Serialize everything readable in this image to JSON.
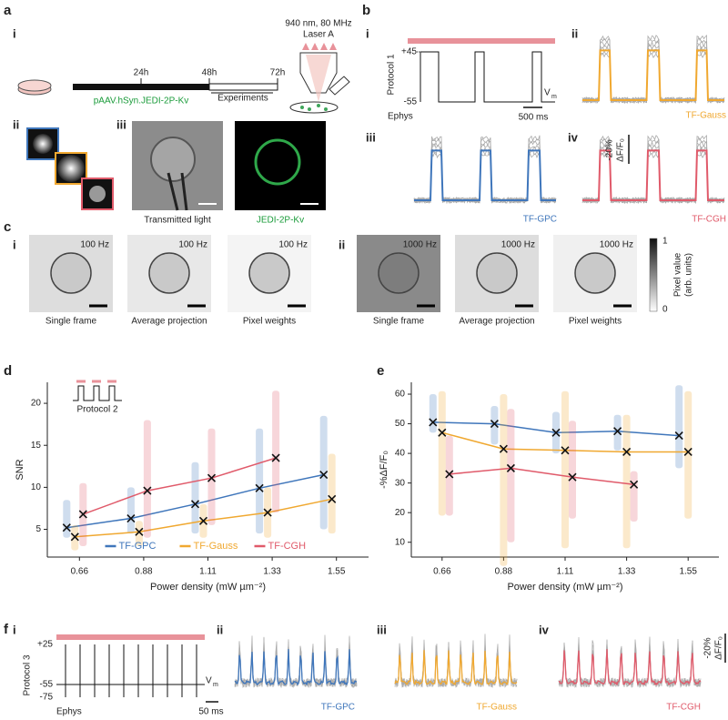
{
  "panel_labels": [
    "a",
    "b",
    "c",
    "d",
    "e",
    "f"
  ],
  "panel_a": {
    "sub_labels": [
      "i",
      "ii",
      "iii"
    ],
    "laser": [
      "940 nm, 80 MHz",
      "Laser A"
    ],
    "timeline": [
      "24h",
      "48h",
      "72h"
    ],
    "construct": "pAAV.hSyn.JEDI-2P-Kv",
    "experiments": "Experiments",
    "captions": [
      "Transmitted light",
      "JEDI-2P-Kv"
    ]
  },
  "panel_b": {
    "sub_labels": [
      "i",
      "ii",
      "iii",
      "iv"
    ],
    "protocol": "Protocol 1",
    "voltages": [
      "+45",
      "-55"
    ],
    "vm": {
      "symbol": "V",
      "subscript": "m"
    },
    "ephys": "Ephys",
    "time_scale": "500 ms",
    "traces": [
      "TF-Gauss",
      "TF-GPC",
      "TF-CGH"
    ],
    "scale": {
      "amplitude": "-20%",
      "unit": "ΔF/F₀"
    }
  },
  "panel_c": {
    "sub_labels": [
      "i",
      "ii"
    ],
    "i": {
      "rates": [
        "100 Hz",
        "100 Hz",
        "100 Hz"
      ],
      "captions": [
        "Single frame",
        "Average projection",
        "Pixel weights"
      ]
    },
    "ii": {
      "rates": [
        "1000 Hz",
        "1000 Hz",
        "1000 Hz"
      ],
      "captions": [
        "Single frame",
        "Average projection",
        "Pixel weights"
      ]
    },
    "colorbar": {
      "max": "1",
      "min": "0",
      "label": [
        "Pixel value",
        "(arb. units)"
      ]
    }
  },
  "panel_d_inset": "Protocol 2",
  "panel_f": {
    "sub_labels": [
      "i",
      "ii",
      "iii",
      "iv"
    ],
    "protocol": "Protocol 3",
    "voltages": [
      "+25",
      "-55",
      "-75"
    ],
    "vm": {
      "symbol": "V",
      "subscript": "m"
    },
    "ephys": "Ephys",
    "time_scale": "50 ms",
    "traces": [
      "TF-GPC",
      "TF-Gauss",
      "TF-CGH"
    ],
    "scale": {
      "amplitude": "-20%",
      "unit": "ΔF/F₀"
    }
  },
  "chart_data": [
    {
      "type": "line",
      "y_label": "SNR",
      "x_label": "Power density (mW µm⁻²)",
      "categories": [
        "0.66",
        "0.88",
        "1.11",
        "1.33",
        "1.55"
      ],
      "ylim": [
        1.7,
        22.5
      ],
      "yticks": [
        5,
        10,
        15,
        20
      ],
      "legend": "lower center",
      "series": [
        {
          "name": "TF-GPC",
          "color": "#3f76bb",
          "values": [
            5.2,
            6.3,
            8.0,
            9.9,
            11.5
          ],
          "ranges": [
            [
              4,
              8.5
            ],
            [
              4.5,
              10
            ],
            [
              4.5,
              13
            ],
            [
              4.5,
              17
            ],
            [
              5,
              18.5
            ]
          ]
        },
        {
          "name": "TF-Gauss",
          "color": "#f0a830",
          "values": [
            4.1,
            4.7,
            6.0,
            7.0,
            8.6
          ],
          "ranges": [
            [
              2.5,
              5.5
            ],
            [
              3,
              6
            ],
            [
              4,
              8
            ],
            [
              4,
              10
            ],
            [
              4.5,
              14
            ]
          ]
        },
        {
          "name": "TF-CGH",
          "color": "#e05a6a",
          "values": [
            6.8,
            9.6,
            11.1,
            13.5,
            null
          ],
          "ranges": [
            [
              3,
              10.5
            ],
            [
              4,
              18
            ],
            [
              5.5,
              17
            ],
            [
              7,
              21.5
            ],
            null
          ]
        }
      ]
    },
    {
      "type": "line",
      "y_label": "-%ΔF/F₀",
      "x_label": "Power density (mW µm⁻²)",
      "categories": [
        "0.66",
        "0.88",
        "1.11",
        "1.33",
        "1.55"
      ],
      "ylim": [
        5,
        64
      ],
      "yticks": [
        10,
        20,
        30,
        40,
        50,
        60
      ],
      "series": [
        {
          "name": "TF-GPC",
          "color": "#3f76bb",
          "values": [
            50.5,
            50,
            47,
            47.5,
            46
          ],
          "ranges": [
            [
              47,
              60
            ],
            [
              43,
              56
            ],
            [
              40,
              54
            ],
            [
              41,
              53
            ],
            [
              35,
              63
            ]
          ]
        },
        {
          "name": "TF-Gauss",
          "color": "#f0a830",
          "values": [
            47,
            41.5,
            41,
            40.5,
            40.5
          ],
          "ranges": [
            [
              19,
              61
            ],
            [
              2,
              60
            ],
            [
              8,
              61
            ],
            [
              8,
              53
            ],
            [
              18,
              61
            ]
          ]
        },
        {
          "name": "TF-CGH",
          "color": "#e05a6a",
          "values": [
            33,
            35,
            32,
            29.5,
            null
          ],
          "ranges": [
            [
              19,
              46
            ],
            [
              10,
              55
            ],
            [
              18,
              51
            ],
            [
              17,
              34
            ],
            null
          ]
        }
      ]
    }
  ]
}
